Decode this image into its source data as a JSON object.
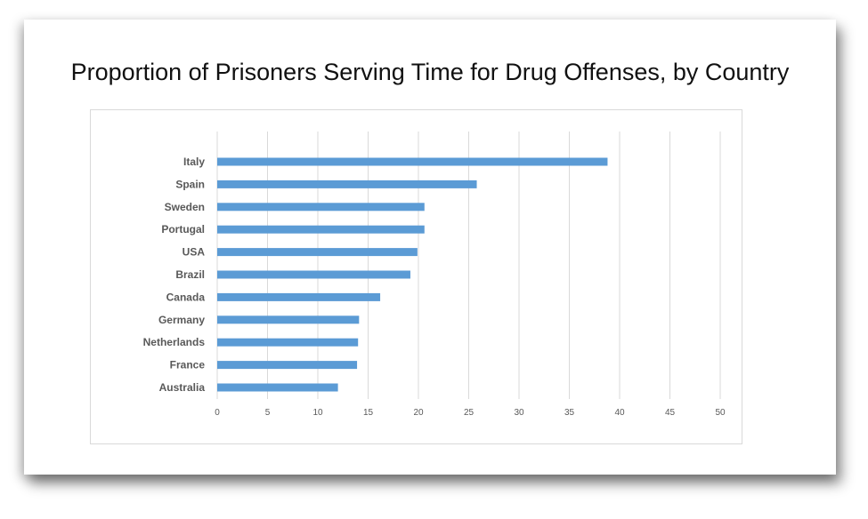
{
  "chart_data": {
    "type": "bar",
    "orientation": "horizontal",
    "title": "Proportion of Prisoners Serving Time for Drug Offenses, by Country",
    "xlabel": "",
    "ylabel": "",
    "categories": [
      "Italy",
      "Spain",
      "Sweden",
      "Portugal",
      "USA",
      "Brazil",
      "Canada",
      "Germany",
      "Netherlands",
      "France",
      "Australia"
    ],
    "values": [
      38.8,
      25.8,
      20.6,
      20.6,
      19.9,
      19.2,
      16.2,
      14.1,
      14.0,
      13.9,
      12.0
    ],
    "xlim": [
      0,
      50
    ],
    "ticks": [
      "0",
      "5",
      "10",
      "15",
      "20",
      "25",
      "30",
      "35",
      "40",
      "45",
      "50"
    ],
    "grid": "vertical",
    "legend": "none",
    "bar_color": "#5b9bd5",
    "grid_color": "#d9d9d9"
  }
}
